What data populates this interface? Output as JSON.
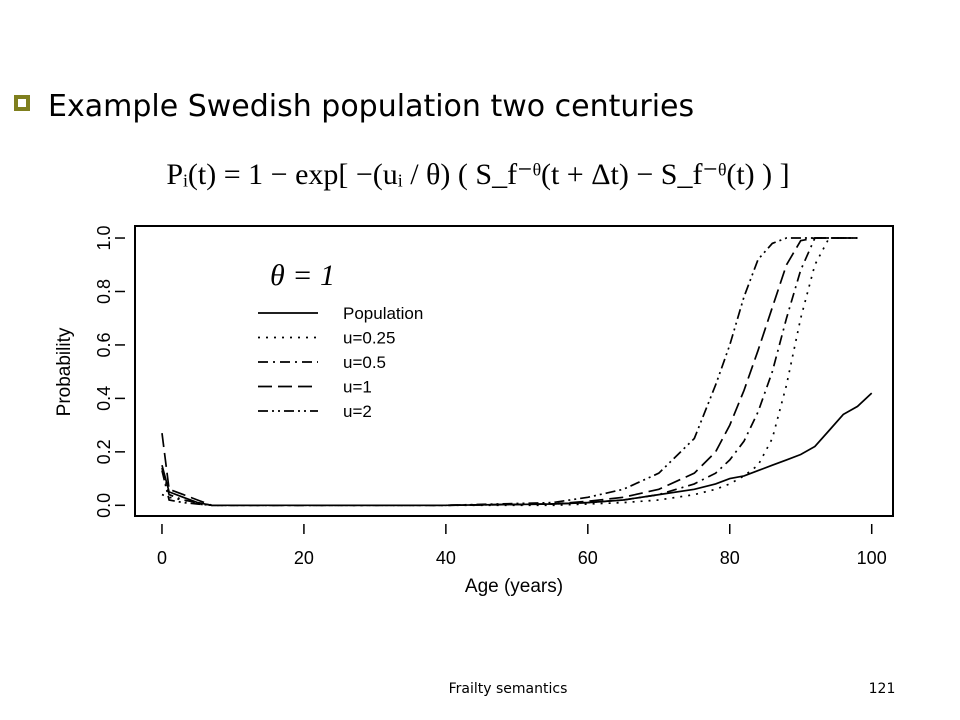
{
  "slide": {
    "bullet": "Example Swedish population two centuries",
    "formula": "Pᵢ(t) = 1 − exp[ −(uᵢ / θ) ( S_f⁻ᶿ(t + Δt) − S_f⁻ᶿ(t) ) ]",
    "footer": "Frailty semantics",
    "page_number": "121"
  },
  "chart_data": {
    "type": "line",
    "annotation": "θ = 1",
    "xlabel": "Age (years)",
    "ylabel": "Probability",
    "x": [
      0,
      1,
      3,
      5,
      7,
      20,
      40,
      55,
      60,
      65,
      70,
      75,
      78,
      80,
      82,
      84,
      86,
      88,
      90,
      92,
      94,
      96,
      98,
      100
    ],
    "series": [
      {
        "name": "Population",
        "color": "#000000",
        "dash": "solid",
        "values": [
          0.15,
          0.05,
          0.03,
          0.01,
          0,
          0,
          0,
          0.005,
          0.01,
          0.02,
          0.04,
          0.06,
          0.08,
          0.1,
          0.11,
          0.13,
          0.15,
          0.17,
          0.19,
          0.22,
          0.28,
          0.34,
          0.37,
          0.42
        ]
      },
      {
        "name": "u=0.25",
        "color": "#000000",
        "dash": "dotted",
        "values": [
          0.04,
          0.03,
          0.02,
          0.005,
          0,
          0,
          0,
          0,
          0.005,
          0.01,
          0.02,
          0.04,
          0.06,
          0.08,
          0.11,
          0.15,
          0.25,
          0.45,
          0.7,
          0.9,
          1.0,
          1.0,
          1.0,
          null
        ]
      },
      {
        "name": "u=0.5",
        "color": "#000000",
        "dash": "dashdot",
        "values": [
          0.14,
          0.04,
          0.02,
          0.01,
          0,
          0,
          0,
          0.005,
          0.01,
          0.02,
          0.04,
          0.08,
          0.12,
          0.17,
          0.24,
          0.35,
          0.5,
          0.7,
          0.88,
          1.0,
          1.0,
          1.0,
          1.0,
          null
        ]
      },
      {
        "name": "u=1",
        "color": "#000000",
        "dash": "dashed",
        "values": [
          0.27,
          0.06,
          0.04,
          0.02,
          0,
          0,
          0,
          0.005,
          0.015,
          0.03,
          0.06,
          0.12,
          0.2,
          0.3,
          0.43,
          0.58,
          0.74,
          0.9,
          0.99,
          1.0,
          1.0,
          1.0,
          1.0,
          null
        ]
      },
      {
        "name": "u=2",
        "color": "#000000",
        "dash": "dashdotdot",
        "values": [
          0.13,
          0.02,
          0.01,
          0.005,
          0,
          0,
          0,
          0.01,
          0.03,
          0.06,
          0.12,
          0.25,
          0.45,
          0.6,
          0.78,
          0.92,
          0.98,
          1.0,
          1.0,
          1.0,
          1.0,
          1.0,
          1.0,
          null
        ]
      }
    ],
    "xlim": [
      -3.8,
      103
    ],
    "ylim": [
      -0.04,
      1.045
    ],
    "xticks": [
      0,
      20,
      40,
      60,
      80,
      100
    ],
    "yticks": [
      {
        "value": 0,
        "label": "0.0"
      },
      {
        "value": 0.2,
        "label": "0.2"
      },
      {
        "value": 0.4,
        "label": "0.4"
      },
      {
        "value": 0.6,
        "label": "0.6"
      },
      {
        "value": 0.8,
        "label": "0.8"
      },
      {
        "value": 1,
        "label": "1.0"
      }
    ],
    "legend": "upper left",
    "grid": false
  }
}
